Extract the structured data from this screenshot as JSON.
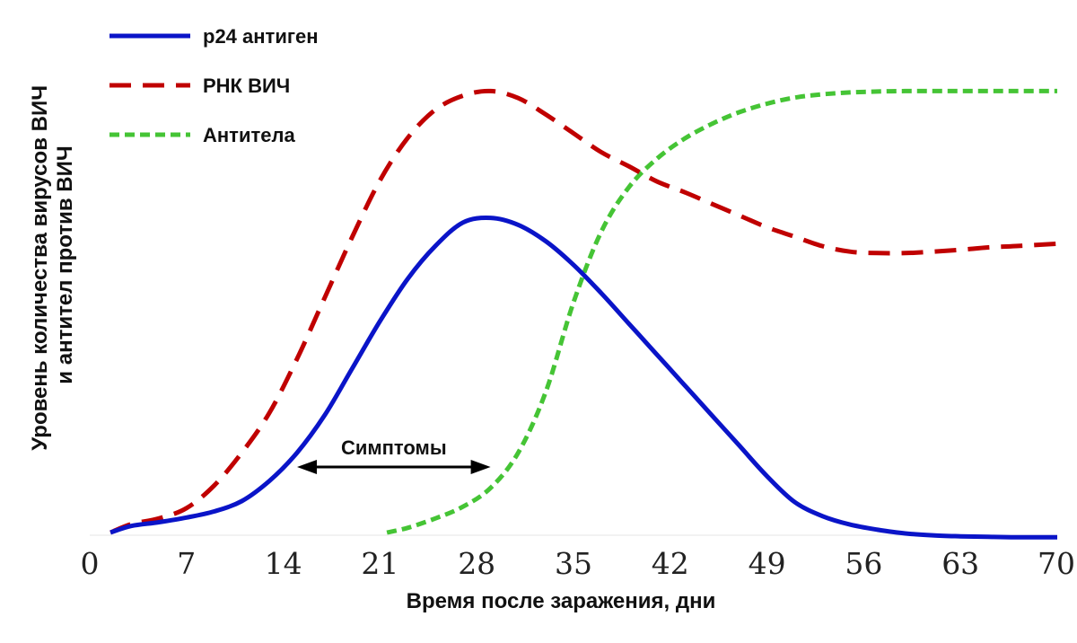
{
  "chart_data": {
    "type": "line",
    "xlabel": "Время после заражения, дни",
    "ylabel_lines": [
      "Уровень количества вирусов ВИЧ",
      "и антител против ВИЧ"
    ],
    "x_ticks": [
      "0",
      "7",
      "14",
      "21",
      "28",
      "35",
      "42",
      "49",
      "56",
      "63",
      "70"
    ],
    "xlim": [
      0,
      70
    ],
    "ylim": [
      0,
      100
    ],
    "grid": false,
    "legend_position": "top-left",
    "annotation": {
      "text": "Симптомы",
      "x_start": 15,
      "x_end": 29
    },
    "series": [
      {
        "name": "p24 антиген",
        "color": "#0a14c8",
        "style": "solid",
        "x": [
          1.5,
          3,
          5,
          7,
          9,
          11,
          13,
          15,
          17,
          19,
          21,
          23,
          25,
          27,
          29,
          31,
          33,
          35,
          37,
          39,
          41,
          43,
          45,
          47,
          49,
          51,
          53,
          55,
          57,
          59,
          61,
          63,
          65,
          67,
          70
        ],
        "y": [
          0,
          1.4,
          2.2,
          3.2,
          4.5,
          6.7,
          11,
          17,
          25,
          35,
          45,
          54,
          61,
          66,
          67,
          65.5,
          62,
          57,
          51,
          44.5,
          38,
          31.5,
          25,
          18.5,
          12,
          6.5,
          3.5,
          1.7,
          0.6,
          -0.2,
          -0.6,
          -0.8,
          -0.9,
          -1,
          -1
        ]
      },
      {
        "name": "РНК ВИЧ",
        "color": "#c00000",
        "style": "dashed",
        "x": [
          1.5,
          3,
          5,
          7,
          9,
          11,
          13,
          15,
          17,
          19,
          21,
          23,
          25,
          27,
          29,
          31,
          33,
          35,
          37,
          39,
          41,
          43,
          45,
          47,
          49,
          51,
          53,
          55,
          57,
          59,
          61,
          63,
          65,
          67,
          70
        ],
        "y": [
          0,
          1.8,
          3,
          5.2,
          10,
          17,
          25.5,
          37,
          50,
          63,
          75,
          84,
          90,
          93,
          94,
          92.5,
          89,
          85,
          81,
          78,
          74.8,
          72.5,
          70,
          67.5,
          65,
          63,
          61,
          59.8,
          59.5,
          59.5,
          59.8,
          60.2,
          60.7,
          61,
          61.5
        ]
      },
      {
        "name": "Антитела",
        "color": "#45c435",
        "style": "dashed",
        "x": [
          21.5,
          23,
          25,
          27,
          29,
          31,
          33,
          35,
          37,
          39,
          41,
          43,
          45,
          47,
          49,
          51,
          53,
          55,
          57,
          59,
          61,
          63,
          65,
          67,
          70
        ],
        "y": [
          0,
          1,
          3,
          5.5,
          9.5,
          17,
          30,
          49,
          64,
          73.5,
          79.5,
          83.8,
          87,
          89.5,
          91.3,
          92.6,
          93.3,
          93.7,
          93.9,
          94,
          94,
          94,
          94,
          94,
          94
        ]
      }
    ]
  }
}
